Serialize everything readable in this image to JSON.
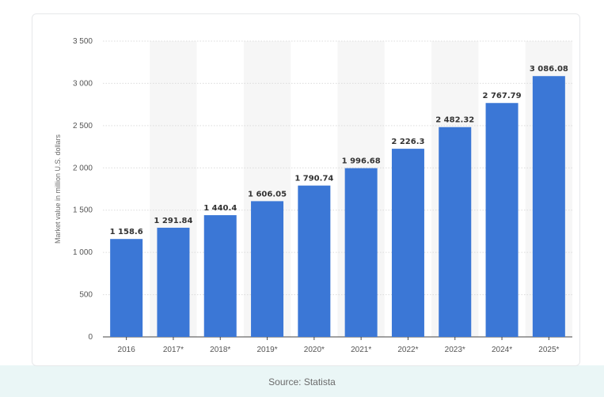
{
  "chart_data": {
    "type": "bar",
    "categories": [
      "2016",
      "2017*",
      "2018*",
      "2019*",
      "2020*",
      "2021*",
      "2022*",
      "2023*",
      "2024*",
      "2025*"
    ],
    "values": [
      1158.6,
      1291.84,
      1440.4,
      1606.05,
      1790.74,
      1996.68,
      2226.3,
      2482.32,
      2767.79,
      3086.08
    ],
    "value_labels": [
      "1 158.6",
      "1 291.84",
      "1 440.4",
      "1 606.05",
      "1 790.74",
      "1 996.68",
      "2 226.3",
      "2 482.32",
      "2 767.79",
      "3 086.08"
    ],
    "ylabel": "Market value in million U.S. dollars",
    "ylim": [
      0,
      3500
    ],
    "yticks": [
      0,
      500,
      1000,
      1500,
      2000,
      2500,
      3000,
      3500
    ],
    "ytick_labels": [
      "0",
      "500",
      "1 000",
      "1 500",
      "2 000",
      "2 500",
      "3 000",
      "3 500"
    ],
    "grid": true,
    "bar_color": "#3b77d6",
    "band_color": "#f6f6f6",
    "grid_color": "#dcdcdc"
  },
  "source_text": "Source: Statista"
}
